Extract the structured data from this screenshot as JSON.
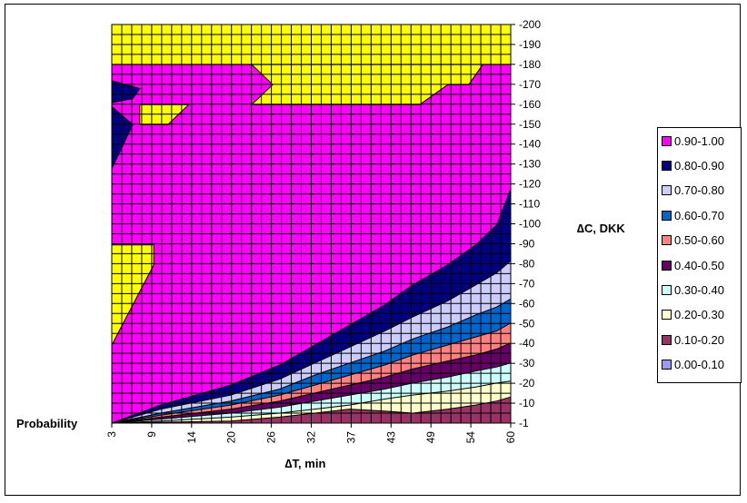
{
  "chart_data": {
    "type": "area",
    "subtype": "contour",
    "xlabel": "∆T, min",
    "ylabel": "∆C, DKK",
    "zlabel": "Probability",
    "x_ticks": [
      "3",
      "9",
      "14",
      "20",
      "26",
      "32",
      "37",
      "43",
      "49",
      "54",
      "60"
    ],
    "x_range": [
      3,
      60
    ],
    "y_ticks": [
      "-1",
      "-10",
      "-20",
      "-30",
      "-40",
      "-50",
      "-60",
      "-70",
      "-80",
      "-90",
      "-100",
      "-110",
      "-120",
      "-130",
      "-140",
      "-150",
      "-160",
      "-170",
      "-180",
      "-190",
      "-200"
    ],
    "y_range": [
      -1,
      -200
    ],
    "grid": true,
    "legend_position": "right",
    "legend": [
      {
        "label": "0.90-1.00",
        "color": "#ff00ff"
      },
      {
        "label": "0.80-0.90",
        "color": "#000080"
      },
      {
        "label": "0.70-0.80",
        "color": "#ccccff"
      },
      {
        "label": "0.60-0.70",
        "color": "#0066cc"
      },
      {
        "label": "0.50-0.60",
        "color": "#ff8080"
      },
      {
        "label": "0.40-0.50",
        "color": "#660066"
      },
      {
        "label": "0.30-0.40",
        "color": "#ccffff"
      },
      {
        "label": "0.20-0.30",
        "color": "#ffffcc"
      },
      {
        "label": "0.10-0.20",
        "color": "#993366"
      },
      {
        "label": "0.00-0.10",
        "color": "#9999ff"
      }
    ],
    "region_colors": {
      "above_1": "#ffff00",
      "grid": "#000000"
    },
    "boundaries": [
      {
        "level": "0.9",
        "points": [
          [
            3,
            -1
          ],
          [
            10,
            -10
          ],
          [
            20,
            -20
          ],
          [
            27,
            -30
          ],
          [
            32,
            -40
          ],
          [
            37,
            -50
          ],
          [
            42,
            -60
          ],
          [
            46,
            -70
          ],
          [
            51,
            -80
          ],
          [
            55,
            -90
          ],
          [
            58,
            -100
          ],
          [
            60,
            -118
          ]
        ]
      },
      {
        "level": "0.8",
        "points": [
          [
            3,
            -1
          ],
          [
            10,
            -8
          ],
          [
            20,
            -15
          ],
          [
            27,
            -23
          ],
          [
            32,
            -31
          ],
          [
            37,
            -39
          ],
          [
            42,
            -47
          ],
          [
            46,
            -54
          ],
          [
            51,
            -62
          ],
          [
            55,
            -70
          ],
          [
            58,
            -76
          ],
          [
            60,
            -82
          ]
        ]
      },
      {
        "level": "0.7",
        "points": [
          [
            3,
            -1
          ],
          [
            10,
            -6
          ],
          [
            20,
            -12
          ],
          [
            27,
            -18
          ],
          [
            32,
            -25
          ],
          [
            37,
            -31
          ],
          [
            42,
            -37
          ],
          [
            46,
            -43
          ],
          [
            51,
            -49
          ],
          [
            55,
            -55
          ],
          [
            58,
            -59
          ],
          [
            60,
            -63
          ]
        ]
      },
      {
        "level": "0.6",
        "points": [
          [
            3,
            -1
          ],
          [
            10,
            -5
          ],
          [
            20,
            -10
          ],
          [
            27,
            -15
          ],
          [
            32,
            -20
          ],
          [
            37,
            -25
          ],
          [
            42,
            -30
          ],
          [
            46,
            -35
          ],
          [
            51,
            -40
          ],
          [
            55,
            -44
          ],
          [
            58,
            -47
          ],
          [
            60,
            -51
          ]
        ]
      },
      {
        "level": "0.5",
        "points": [
          [
            3,
            -1
          ],
          [
            10,
            -4
          ],
          [
            20,
            -8
          ],
          [
            27,
            -12
          ],
          [
            32,
            -16
          ],
          [
            37,
            -20
          ],
          [
            42,
            -24
          ],
          [
            46,
            -28
          ],
          [
            51,
            -32
          ],
          [
            55,
            -35
          ],
          [
            58,
            -38
          ],
          [
            60,
            -41
          ]
        ]
      },
      {
        "level": "0.4",
        "points": [
          [
            3,
            -1
          ],
          [
            10,
            -3
          ],
          [
            20,
            -6
          ],
          [
            27,
            -9
          ],
          [
            32,
            -12
          ],
          [
            37,
            -15
          ],
          [
            42,
            -18
          ],
          [
            46,
            -21
          ],
          [
            51,
            -24
          ],
          [
            55,
            -27
          ],
          [
            58,
            -29
          ],
          [
            60,
            -31
          ]
        ]
      },
      {
        "level": "0.3",
        "points": [
          [
            3,
            -1
          ],
          [
            10,
            -2
          ],
          [
            20,
            -4
          ],
          [
            27,
            -6
          ],
          [
            32,
            -8
          ],
          [
            37,
            -10
          ],
          [
            42,
            -13
          ],
          [
            46,
            -15
          ],
          [
            51,
            -17
          ],
          [
            55,
            -19
          ],
          [
            58,
            -21
          ],
          [
            60,
            -22
          ]
        ]
      },
      {
        "level": "0.2",
        "points": [
          [
            3,
            -1
          ],
          [
            20,
            -2
          ],
          [
            27,
            -4
          ],
          [
            32,
            -6
          ],
          [
            37,
            -8
          ],
          [
            42,
            -7
          ],
          [
            46,
            -6
          ],
          [
            51,
            -8
          ],
          [
            55,
            -10
          ],
          [
            58,
            -12
          ],
          [
            60,
            -14
          ]
        ]
      }
    ],
    "regions_above_1": [
      [
        [
          3,
          -200
        ],
        [
          60,
          -200
        ],
        [
          60,
          -180
        ],
        [
          3,
          -180
        ]
      ],
      [
        [
          23,
          -180
        ],
        [
          26,
          -170
        ],
        [
          23,
          -160
        ],
        [
          47,
          -160
        ],
        [
          51,
          -170
        ],
        [
          54,
          -170
        ],
        [
          56,
          -180
        ]
      ],
      [
        [
          7,
          -160
        ],
        [
          14,
          -160
        ],
        [
          11,
          -150
        ],
        [
          7,
          -150
        ]
      ],
      [
        [
          3,
          -90
        ],
        [
          9,
          -90
        ],
        [
          9,
          -80
        ],
        [
          3,
          -40
        ]
      ]
    ],
    "regions_0_8": [
      [
        [
          3,
          -172
        ],
        [
          7,
          -168
        ],
        [
          6,
          -163
        ],
        [
          3,
          -161
        ]
      ],
      [
        [
          3,
          -159
        ],
        [
          6,
          -150
        ],
        [
          3,
          -128
        ]
      ]
    ]
  }
}
